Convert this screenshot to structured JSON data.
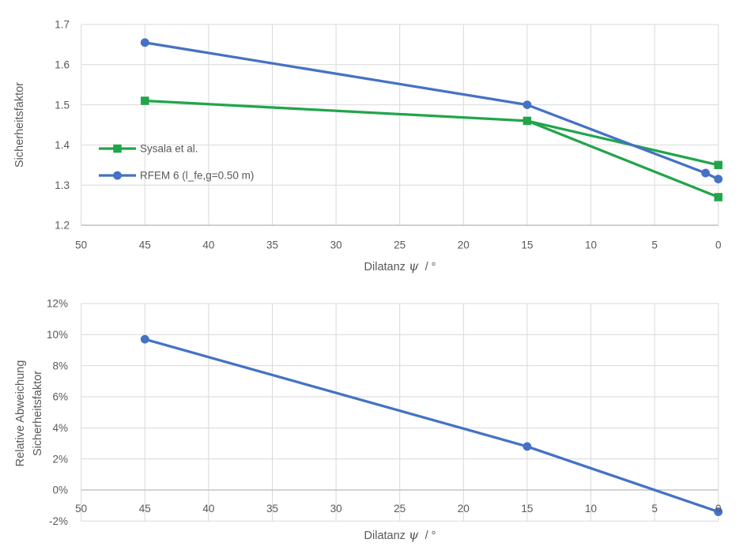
{
  "colors": {
    "background": "#FFFFFF",
    "text": "#595959",
    "gridline": "#D9D9D9",
    "axis_line": "#BFBFBF",
    "green": "#21A54B",
    "blue": "#4472C4"
  },
  "chart_data": [
    {
      "id": "safety-factor",
      "type": "line",
      "title": "",
      "xlabel": {
        "prefix": "Dilatanz ",
        "symbol": "ψ",
        "suffix": "  / °"
      },
      "ylabel_lines": [
        "Sicherheitsfaktor"
      ],
      "x_axis": {
        "min": 50,
        "max": 0,
        "reversed": true,
        "tick_values": [
          50,
          45,
          40,
          35,
          30,
          25,
          20,
          15,
          10,
          5,
          0
        ],
        "tick_labels": [
          "50",
          "45",
          "40",
          "35",
          "30",
          "25",
          "20",
          "15",
          "10",
          "5",
          "0"
        ],
        "labels_inside": false
      },
      "y_axis": {
        "min": 1.2,
        "max": 1.7,
        "axis_cross": 1.2,
        "tick_values": [
          1.7,
          1.6,
          1.5,
          1.4,
          1.3,
          1.2
        ],
        "tick_labels": [
          "1.7",
          "1.6",
          "1.5",
          "1.4",
          "1.3",
          "1.2"
        ]
      },
      "grid": true,
      "legend": {
        "visible": true,
        "position": "inside-left"
      },
      "series": [
        {
          "name": "Sysala et al.",
          "color_key": "green",
          "marker": "square",
          "segments": [
            [
              [
                45,
                1.51
              ],
              [
                15,
                1.46
              ],
              [
                0,
                1.35
              ]
            ],
            [
              [
                15,
                1.46
              ],
              [
                0,
                1.27
              ]
            ]
          ],
          "points": [
            [
              45,
              1.51
            ],
            [
              15,
              1.46
            ],
            [
              0,
              1.35
            ],
            [
              0,
              1.27
            ]
          ]
        },
        {
          "name": "RFEM 6 (l_fe,g=0.50 m)",
          "color_key": "blue",
          "marker": "circle",
          "segments": [
            [
              [
                45,
                1.655
              ],
              [
                15,
                1.5
              ],
              [
                1,
                1.33
              ],
              [
                0,
                1.315
              ]
            ]
          ],
          "points": [
            [
              45,
              1.655
            ],
            [
              15,
              1.5
            ],
            [
              1,
              1.33
            ],
            [
              0,
              1.315
            ]
          ]
        }
      ]
    },
    {
      "id": "relative-deviation",
      "type": "line",
      "title": "",
      "xlabel": {
        "prefix": "Dilatanz ",
        "symbol": "ψ",
        "suffix": "  / °"
      },
      "ylabel_lines": [
        "Relative Abweichung",
        "Sicherheitsfaktor"
      ],
      "x_axis": {
        "min": 50,
        "max": 0,
        "reversed": true,
        "tick_values": [
          50,
          45,
          40,
          35,
          30,
          25,
          20,
          15,
          10,
          5,
          0
        ],
        "tick_labels": [
          "50",
          "45",
          "40",
          "35",
          "30",
          "25",
          "20",
          "15",
          "10",
          "5",
          "0"
        ],
        "labels_inside": true
      },
      "y_axis": {
        "min": -2,
        "max": 12,
        "axis_cross": 0,
        "unit": "%",
        "tick_values": [
          12,
          10,
          8,
          6,
          4,
          2,
          0,
          -2
        ],
        "tick_labels": [
          "12%",
          "10%",
          "8%",
          "6%",
          "4%",
          "2%",
          "0%",
          "-2%"
        ]
      },
      "grid": true,
      "legend": {
        "visible": false
      },
      "series": [
        {
          "name": "RFEM 6 (l_fe,g=0.50 m)",
          "color_key": "blue",
          "marker": "circle",
          "segments": [
            [
              [
                45,
                9.7
              ],
              [
                15,
                2.8
              ],
              [
                0,
                -1.4
              ]
            ]
          ],
          "points": [
            [
              45,
              9.7
            ],
            [
              15,
              2.8
            ],
            [
              0,
              -1.4
            ]
          ]
        }
      ]
    }
  ]
}
